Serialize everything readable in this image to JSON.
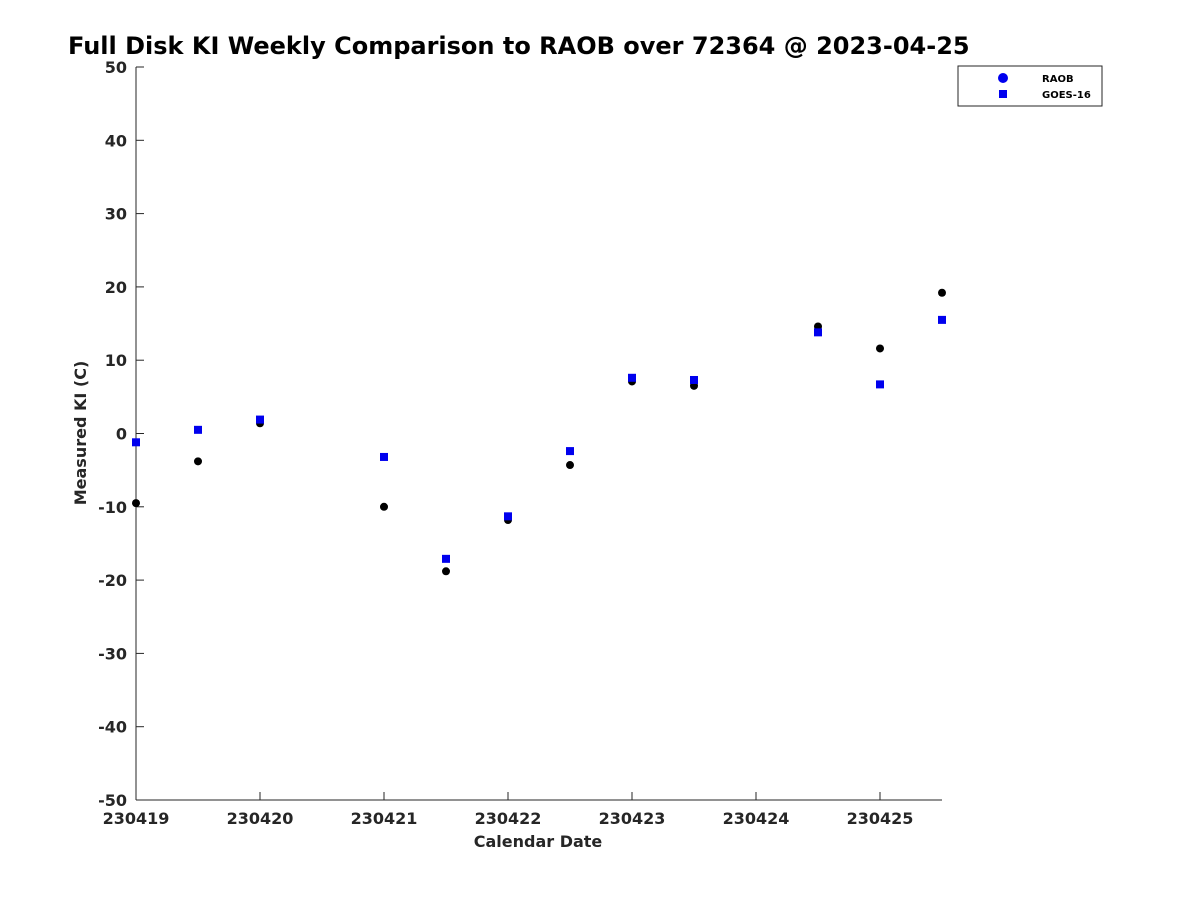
{
  "chart_data": {
    "type": "scatter",
    "title": "Full Disk KI Weekly Comparison to RAOB over 72364 @ 2023-04-25",
    "xlabel": "Calendar Date",
    "ylabel": "Measured KI (C)",
    "xlim": [
      0,
      6.5
    ],
    "ylim": [
      -50,
      50
    ],
    "xticks": [
      0,
      1,
      2,
      3,
      4,
      5,
      6
    ],
    "xtick_labels": [
      "230419",
      "230420",
      "230421",
      "230422",
      "230423",
      "230424",
      "230425"
    ],
    "yticks": [
      -50,
      -40,
      -30,
      -20,
      -10,
      0,
      10,
      20,
      30,
      40,
      50
    ],
    "ytick_labels": [
      "-50",
      "-40",
      "-30",
      "-20",
      "-10",
      "0",
      "10",
      "20",
      "30",
      "40",
      "50"
    ],
    "grid": false,
    "legend_position": "top-right",
    "series": [
      {
        "name": "RAOB",
        "marker": "circle",
        "color": "#000000",
        "legend_color": "#0000ee",
        "x": [
          0,
          0.5,
          1,
          2,
          2.5,
          3,
          3.5,
          4,
          4.5,
          5.5,
          6,
          6.5
        ],
        "y": [
          -9.5,
          -3.8,
          1.4,
          -10,
          -18.8,
          -11.8,
          -4.3,
          7.1,
          6.5,
          14.6,
          11.6,
          19.2
        ]
      },
      {
        "name": "GOES-16",
        "marker": "square",
        "color": "#0000ee",
        "x": [
          0,
          0.5,
          1,
          2,
          2.5,
          3,
          3.5,
          4,
          4.5,
          5.5,
          6,
          6.5
        ],
        "y": [
          -1.2,
          0.5,
          1.9,
          -3.2,
          -17.1,
          -11.3,
          -2.4,
          7.6,
          7.3,
          13.8,
          6.7,
          15.5
        ]
      }
    ]
  }
}
